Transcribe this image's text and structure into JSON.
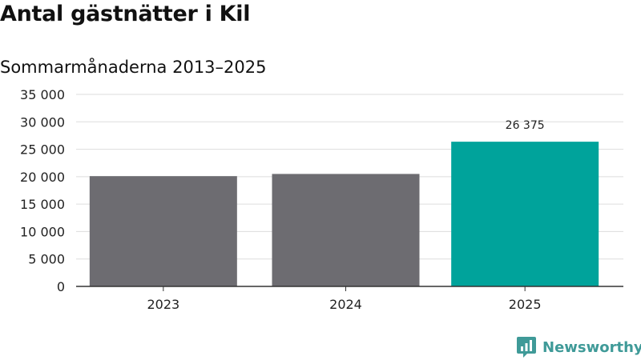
{
  "title": "Antal gästnätter i Kil",
  "subtitle": "Sommarmånaderna 2013–2025",
  "brand": {
    "name": "Newsworthy",
    "logo_icon": "bar-chart-speech-bubble-icon",
    "color": "#3f9a98"
  },
  "chart_data": {
    "type": "bar",
    "categories": [
      "2023",
      "2024",
      "2025"
    ],
    "values": [
      20100,
      20500,
      26375
    ],
    "bar_colors": [
      "#6d6c71",
      "#6d6c71",
      "#00a39b"
    ],
    "data_labels": [
      null,
      null,
      "26 375"
    ],
    "ylim": [
      0,
      35000
    ],
    "yticks": [
      0,
      5000,
      10000,
      15000,
      20000,
      25000,
      30000,
      35000
    ],
    "ytick_labels": [
      "0",
      "5 000",
      "10 000",
      "15 000",
      "20 000",
      "25 000",
      "30 000",
      "35 000"
    ],
    "grid": true,
    "xlabel": "",
    "ylabel": ""
  }
}
